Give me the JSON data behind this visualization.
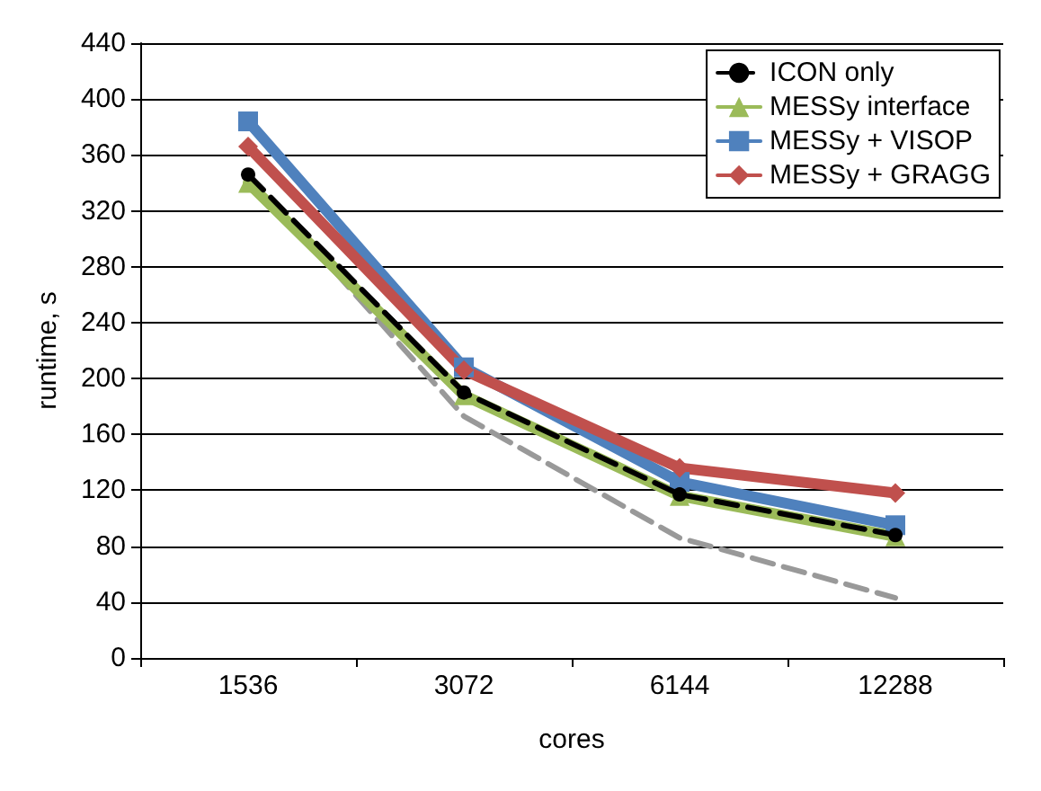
{
  "chart_data": {
    "type": "line",
    "xlabel": "cores",
    "ylabel": "runtime, s",
    "categories": [
      "1536",
      "3072",
      "6144",
      "12288"
    ],
    "ylim": [
      0,
      440
    ],
    "yticks": [
      0,
      40,
      80,
      120,
      160,
      200,
      240,
      280,
      320,
      360,
      400,
      440
    ],
    "grid": "y",
    "legend": "top right",
    "series": [
      {
        "name": "ICON only",
        "color": "#000000",
        "marker": "circle",
        "line_style": "dashed",
        "values": [
          346,
          190,
          117,
          88
        ]
      },
      {
        "name": "MESSy interface",
        "color": "#9bbb59",
        "marker": "triangle",
        "line_style": "solid",
        "values": [
          340,
          188,
          116,
          87
        ]
      },
      {
        "name": "MESSy + VISOP",
        "color": "#4f81bd",
        "marker": "square",
        "line_style": "solid",
        "values": [
          384,
          208,
          126,
          95
        ]
      },
      {
        "name": "MESSy + GRAGG",
        "color": "#c0504d",
        "marker": "diamond",
        "line_style": "solid",
        "values": [
          366,
          206,
          136,
          118
        ]
      },
      {
        "color": "#999999",
        "marker": "none",
        "line_style": "dashed",
        "values": [
          346,
          173,
          86,
          43
        ]
      }
    ]
  }
}
